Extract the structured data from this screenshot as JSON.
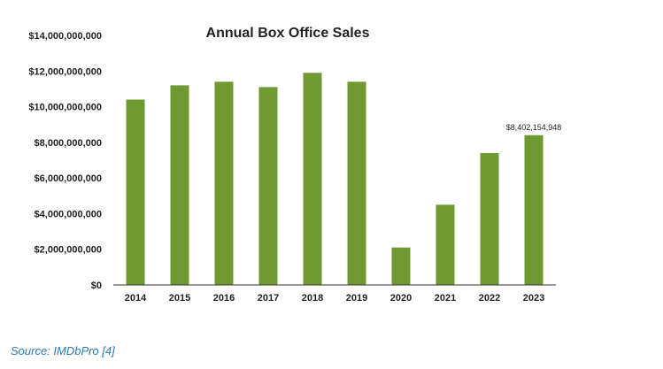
{
  "caption": {
    "source": "Source: IMDbPro [4]"
  },
  "colors": {
    "bar": "#6f9a32",
    "axis": "#333333",
    "text": "#222222"
  },
  "chart_data": {
    "type": "bar",
    "title": "Annual Box Office Sales",
    "xlabel": "",
    "ylabel": "",
    "categories": [
      "2014",
      "2015",
      "2016",
      "2017",
      "2018",
      "2019",
      "2020",
      "2021",
      "2022",
      "2023"
    ],
    "values": [
      10400000000,
      11200000000,
      11400000000,
      11100000000,
      11900000000,
      11400000000,
      2100000000,
      4500000000,
      7400000000,
      8402154948
    ],
    "ylim": [
      0,
      14000000000
    ],
    "yticks": [
      0,
      2000000000,
      4000000000,
      6000000000,
      8000000000,
      10000000000,
      12000000000,
      14000000000
    ],
    "ytick_labels": [
      "$0",
      "$2,000,000,000",
      "$4,000,000,000",
      "$6,000,000,000",
      "$8,000,000,000",
      "$10,000,000,000",
      "$12,000,000,000",
      "$14,000,000,000"
    ],
    "annotations": [
      {
        "category": "2023",
        "text": "$8,402,154,948"
      }
    ],
    "grid": false,
    "legend": "none"
  }
}
